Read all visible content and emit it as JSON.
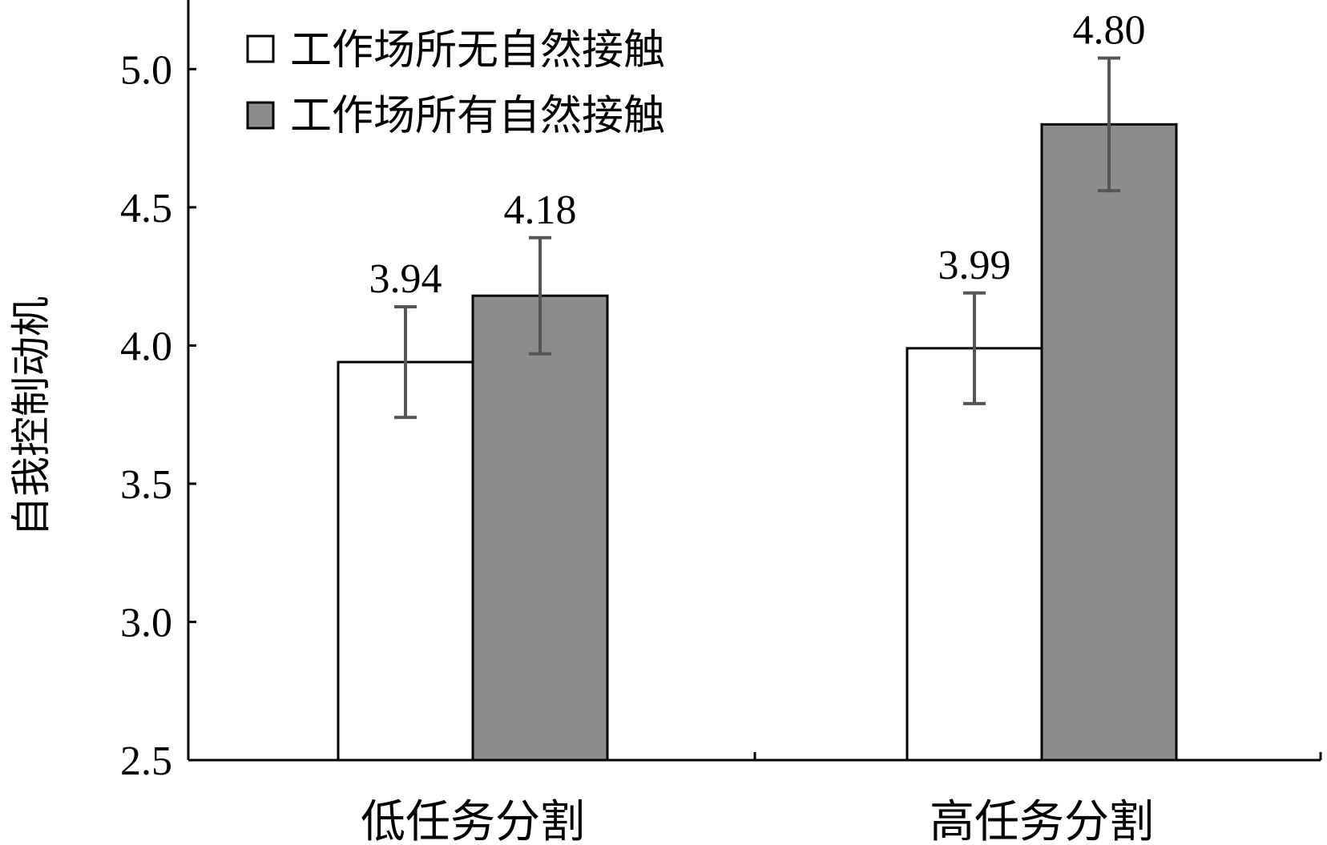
{
  "chart_data": {
    "type": "bar",
    "title": "",
    "xlabel": "",
    "ylabel": "自我控制动机",
    "ylim": [
      2.5,
      5.25
    ],
    "yticks": [
      "2.5",
      "3.0",
      "3.5",
      "4.0",
      "4.5",
      "5.0"
    ],
    "grid": false,
    "legend_position": "top-left",
    "categories": [
      "低任务分割",
      "高任务分割"
    ],
    "series": [
      {
        "name": "工作场所无自然接触",
        "color": "#ffffff",
        "values": [
          3.94,
          3.99
        ],
        "labels": [
          "3.94",
          "3.99"
        ],
        "error_low": [
          3.74,
          3.79
        ],
        "error_high": [
          4.14,
          4.19
        ]
      },
      {
        "name": "工作场所有自然接触",
        "color": "#8c8c8c",
        "values": [
          4.18,
          4.8
        ],
        "labels": [
          "4.18",
          "4.80"
        ],
        "error_low": [
          3.97,
          4.56
        ],
        "error_high": [
          4.39,
          5.04
        ]
      }
    ]
  }
}
